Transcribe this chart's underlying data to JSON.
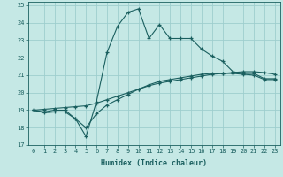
{
  "xlabel": "Humidex (Indice chaleur)",
  "bg_color": "#c5e8e5",
  "grid_color": "#9ecece",
  "line_color": "#1a5f5f",
  "xlim": [
    -0.5,
    23.5
  ],
  "ylim": [
    17,
    25.2
  ],
  "yticks": [
    17,
    18,
    19,
    20,
    21,
    22,
    23,
    24,
    25
  ],
  "xticks": [
    0,
    1,
    2,
    3,
    4,
    5,
    6,
    7,
    8,
    9,
    10,
    11,
    12,
    13,
    14,
    15,
    16,
    17,
    18,
    19,
    20,
    21,
    22,
    23
  ],
  "line1_x": [
    0,
    1,
    2,
    3,
    4,
    5,
    6,
    7,
    8,
    9,
    10,
    11,
    12,
    13,
    14,
    15,
    16,
    17,
    18,
    19,
    20,
    21,
    22,
    23
  ],
  "line1_y": [
    19.0,
    18.9,
    19.0,
    19.0,
    18.5,
    17.5,
    19.5,
    22.3,
    23.8,
    24.6,
    24.8,
    23.1,
    23.9,
    23.1,
    23.1,
    23.1,
    22.5,
    22.1,
    21.8,
    21.2,
    21.1,
    21.1,
    20.8,
    20.8
  ],
  "line2_x": [
    0,
    1,
    2,
    3,
    4,
    5,
    6,
    7,
    8,
    9,
    10,
    11,
    12,
    13,
    14,
    15,
    16,
    17,
    18,
    19,
    20,
    21,
    22,
    23
  ],
  "line2_y": [
    19.0,
    19.05,
    19.1,
    19.15,
    19.2,
    19.25,
    19.4,
    19.6,
    19.8,
    20.0,
    20.2,
    20.4,
    20.55,
    20.65,
    20.75,
    20.85,
    20.95,
    21.05,
    21.1,
    21.15,
    21.2,
    21.2,
    21.15,
    21.05
  ],
  "line3_x": [
    0,
    1,
    2,
    3,
    4,
    5,
    6,
    7,
    8,
    9,
    10,
    11,
    12,
    13,
    14,
    15,
    16,
    17,
    18,
    19,
    20,
    21,
    22,
    23
  ],
  "line3_y": [
    19.0,
    18.85,
    18.9,
    18.9,
    18.5,
    18.0,
    18.8,
    19.3,
    19.6,
    19.9,
    20.2,
    20.45,
    20.65,
    20.75,
    20.85,
    20.95,
    21.05,
    21.1,
    21.1,
    21.1,
    21.05,
    21.0,
    20.75,
    20.75
  ]
}
